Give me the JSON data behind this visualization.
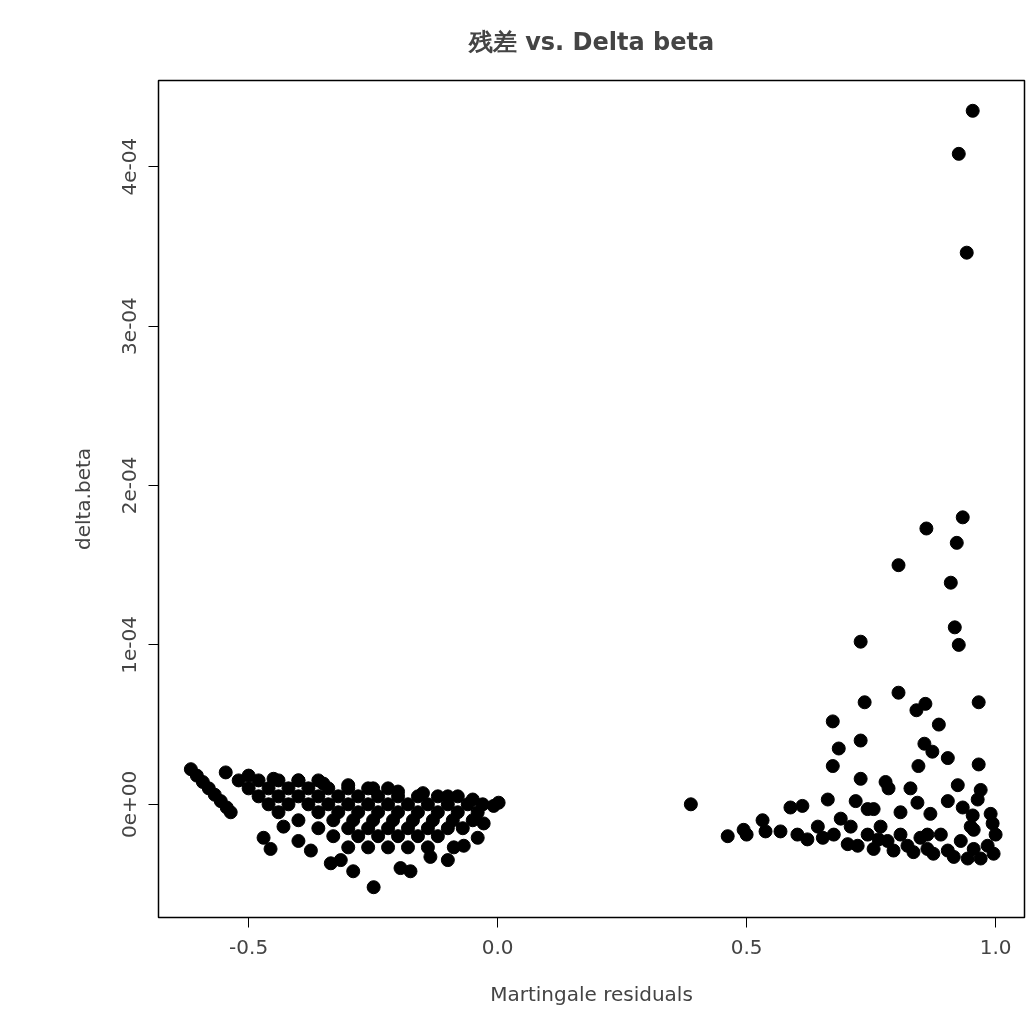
{
  "chart_data": {
    "type": "scatter",
    "title": "残差 vs. Delta beta",
    "xlabel": "Martingale residuals",
    "ylabel": "delta.beta",
    "xlim": [
      -0.681,
      1.058
    ],
    "ylim": [
      -7.1e-05,
      0.000454
    ],
    "xticks": [
      {
        "value": -0.5,
        "label": "-0.5"
      },
      {
        "value": 0,
        "label": "0.0"
      },
      {
        "value": 0.5,
        "label": "0.5"
      },
      {
        "value": 1,
        "label": "1.0"
      }
    ],
    "yticks": [
      {
        "value": 0,
        "label": "0e+00"
      },
      {
        "value": 0.0001,
        "label": "1e-04"
      },
      {
        "value": 0.0002,
        "label": "2e-04"
      },
      {
        "value": 0.0003,
        "label": "3e-04"
      },
      {
        "value": 0.0004,
        "label": "4e-04"
      }
    ],
    "grid": false,
    "marker": "circle",
    "series": [
      {
        "color": "#000000",
        "x": [
          0.954,
          0.926,
          0.942,
          0.934,
          0.861,
          0.922,
          0.805,
          0.91,
          0.918,
          0.926,
          0.729,
          0.388,
          0.673,
          0.737,
          0.805,
          0.859,
          0.841,
          0.966,
          0.886,
          0.685,
          0.729,
          0.673,
          0.857,
          0.873,
          0.904,
          0.845,
          0.966,
          0.729,
          0.779,
          0.785,
          0.829,
          0.924,
          0.97,
          0.663,
          0.719,
          0.843,
          0.904,
          0.934,
          0.964,
          0.588,
          0.612,
          0.743,
          0.755,
          0.809,
          0.869,
          0.954,
          0.99,
          0.462,
          0.494,
          0.5,
          0.532,
          0.538,
          0.568,
          0.602,
          0.622,
          0.643,
          0.653,
          0.675,
          0.689,
          0.709,
          0.723,
          0.743,
          0.755,
          0.769,
          0.783,
          0.795,
          0.809,
          0.823,
          0.835,
          0.849,
          0.863,
          0.875,
          0.89,
          0.904,
          0.916,
          0.93,
          0.944,
          0.956,
          0.97,
          0.984,
          0.996,
          1.0,
          0.994,
          0.95,
          0.956,
          0.863,
          0.765,
          0.703,
          -0.616,
          -0.604,
          -0.592,
          -0.58,
          -0.568,
          -0.556,
          -0.544,
          -0.536,
          -0.546,
          -0.5,
          -0.45,
          -0.4,
          -0.35,
          -0.3,
          -0.25,
          -0.2,
          -0.15,
          -0.1,
          -0.05,
          0.002,
          -0.52,
          -0.48,
          -0.44,
          -0.4,
          -0.36,
          -0.5,
          -0.46,
          -0.42,
          -0.38,
          -0.34,
          -0.3,
          -0.26,
          -0.22,
          -0.48,
          -0.44,
          -0.4,
          -0.36,
          -0.32,
          -0.28,
          -0.24,
          -0.2,
          -0.16,
          -0.12,
          -0.08,
          -0.46,
          -0.42,
          -0.38,
          -0.34,
          -0.3,
          -0.26,
          -0.22,
          -0.18,
          -0.14,
          -0.1,
          -0.06,
          -0.03,
          -0.44,
          -0.36,
          -0.32,
          -0.28,
          -0.24,
          -0.2,
          -0.16,
          -0.12,
          -0.08,
          -0.04,
          -0.4,
          -0.33,
          -0.29,
          -0.25,
          -0.21,
          -0.17,
          -0.13,
          -0.09,
          -0.05,
          -0.36,
          -0.3,
          -0.26,
          -0.22,
          -0.18,
          -0.14,
          -0.1,
          -0.07,
          -0.33,
          -0.28,
          -0.24,
          -0.2,
          -0.16,
          -0.12,
          -0.3,
          -0.26,
          -0.22,
          -0.18,
          -0.14,
          -0.47,
          -0.456,
          -0.43,
          -0.4,
          -0.375,
          -0.335,
          -0.315,
          -0.29,
          -0.249,
          -0.195,
          -0.175,
          -0.135,
          -0.1,
          -0.088,
          -0.04,
          -0.008,
          -0.028,
          -0.068
        ],
        "values": [
          0.000435,
          0.000408,
          0.000346,
          0.00018,
          0.000173,
          0.000164,
          0.00015,
          0.000139,
          0.000111,
          0.0001,
          0.000102,
          0.0,
          5.2e-05,
          6.4e-05,
          7e-05,
          6.3e-05,
          5.9e-05,
          6.4e-05,
          5e-05,
          3.5e-05,
          4e-05,
          2.4e-05,
          3.8e-05,
          3.3e-05,
          2.9e-05,
          2.4e-05,
          2.5e-05,
          1.6e-05,
          1.4e-05,
          1e-05,
          1e-05,
          1.2e-05,
          9e-06,
          3e-06,
          2e-06,
          1e-06,
          2e-06,
          -2e-06,
          3e-06,
          -2e-06,
          -1e-06,
          -3e-06,
          -3e-06,
          -5e-06,
          -6e-06,
          -7e-06,
          -6e-06,
          -2e-05,
          -1.6e-05,
          -1.9e-05,
          -1e-05,
          -1.7e-05,
          -1.7e-05,
          -1.9e-05,
          -2.2e-05,
          -1.4e-05,
          -2.1e-05,
          -1.9e-05,
          -9e-06,
          -1.4e-05,
          -2.6e-05,
          -1.9e-05,
          -2.8e-05,
          -1.4e-05,
          -2.3e-05,
          -2.9e-05,
          -1.9e-05,
          -2.6e-05,
          -3e-05,
          -2.1e-05,
          -2.8e-05,
          -3.1e-05,
          -1.9e-05,
          -2.9e-05,
          -3.3e-05,
          -2.3e-05,
          -3.4e-05,
          -2.8e-05,
          -3.4e-05,
          -2.6e-05,
          -3.1e-05,
          -1.9e-05,
          -1.2e-05,
          -1.4e-05,
          -1.6e-05,
          -1.9e-05,
          -2.2e-05,
          -2.5e-05,
          2.2e-05,
          1.8e-05,
          1.4e-05,
          1e-05,
          6e-06,
          2e-06,
          -2e-06,
          -5e-06,
          2e-05,
          1.8e-05,
          1.6e-05,
          1.5e-05,
          1.3e-05,
          1.2e-05,
          1e-05,
          8e-06,
          7e-06,
          5e-06,
          3e-06,
          1e-06,
          1.5e-05,
          1.5e-05,
          1.5e-05,
          1.5e-05,
          1.5e-05,
          1e-05,
          1e-05,
          1e-05,
          1e-05,
          1e-05,
          1e-05,
          1e-05,
          1e-05,
          5e-06,
          5e-06,
          5e-06,
          5e-06,
          5e-06,
          5e-06,
          5e-06,
          5e-06,
          5e-06,
          5e-06,
          5e-06,
          0.0,
          0.0,
          0.0,
          0.0,
          0.0,
          0.0,
          0.0,
          0.0,
          0.0,
          0.0,
          0.0,
          0.0,
          -5e-06,
          -5e-06,
          -5e-06,
          -5e-06,
          -5e-06,
          -5e-06,
          -5e-06,
          -5e-06,
          -5e-06,
          -5e-06,
          -1e-05,
          -1e-05,
          -1e-05,
          -1e-05,
          -1e-05,
          -1e-05,
          -1e-05,
          -1e-05,
          -1e-05,
          -1.5e-05,
          -1.5e-05,
          -1.5e-05,
          -1.5e-05,
          -1.5e-05,
          -1.5e-05,
          -1.5e-05,
          -1.5e-05,
          -2e-05,
          -2e-05,
          -2e-05,
          -2e-05,
          -2e-05,
          -2e-05,
          -2.7e-05,
          -2.7e-05,
          -2.7e-05,
          -2.7e-05,
          -2.7e-05,
          -2.1e-05,
          -2.8e-05,
          -1.4e-05,
          -2.3e-05,
          -2.9e-05,
          -3.7e-05,
          -3.5e-05,
          -4.2e-05,
          -5.2e-05,
          -4e-05,
          -4.2e-05,
          -3.3e-05,
          -3.5e-05,
          -2.7e-05,
          -2.1e-05,
          -1e-06,
          -1.2e-05,
          -2.6e-05
        ]
      }
    ]
  }
}
